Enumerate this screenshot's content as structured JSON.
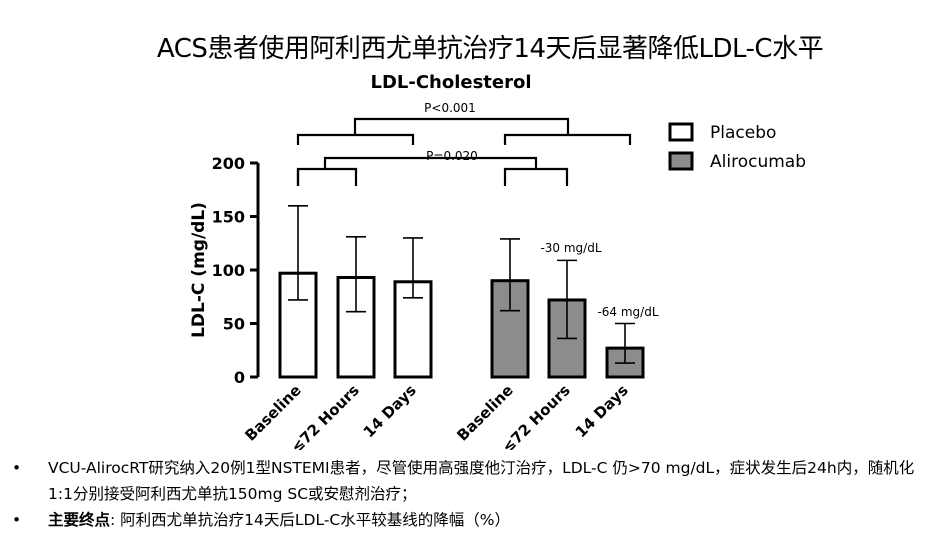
{
  "slide": {
    "title": "ACS患者使用阿利西尤单抗治疗14天后显著降低LDL-C水平"
  },
  "chart_data": {
    "type": "bar",
    "title": "LDL-Cholesterol",
    "ylabel": "LDL-C (mg/dL)",
    "xlabel": "",
    "ylim": [
      0,
      200
    ],
    "yticks": [
      0,
      50,
      100,
      150,
      200
    ],
    "grid": false,
    "legend_position": "top-right",
    "categories": [
      "Baseline",
      "≤72 Hours",
      "14 Days"
    ],
    "series": [
      {
        "name": "Placebo",
        "color": "#ffffff",
        "values": [
          97,
          93,
          89
        ],
        "error_low": [
          72,
          61,
          74
        ],
        "error_high": [
          160,
          131,
          130
        ]
      },
      {
        "name": "Alirocumab",
        "color": "#8c8c8c",
        "values": [
          90,
          72,
          27
        ],
        "error_low": [
          62,
          36,
          13
        ],
        "error_high": [
          129,
          109,
          50
        ]
      }
    ],
    "annotations": [
      {
        "text": "P<0.001"
      },
      {
        "text": "P=0.020"
      },
      {
        "text": "-30 mg/dL"
      },
      {
        "text": "-64 mg/dL"
      }
    ]
  },
  "bullets": [
    {
      "prefix": "",
      "text": "VCU-AlirocRT研究纳入20例1型NSTEMI患者，尽管使用高强度他汀治疗，LDL-C 仍>70 mg/dL，症状发生后24h内，随机化1:1分别接受阿利西尤单抗150mg SC或安慰剂治疗；"
    },
    {
      "prefix": "主要终点",
      "text": ": 阿利西尤单抗治疗14天后LDL-C水平较基线的降幅（%）"
    }
  ],
  "bullet_symbol": "•"
}
